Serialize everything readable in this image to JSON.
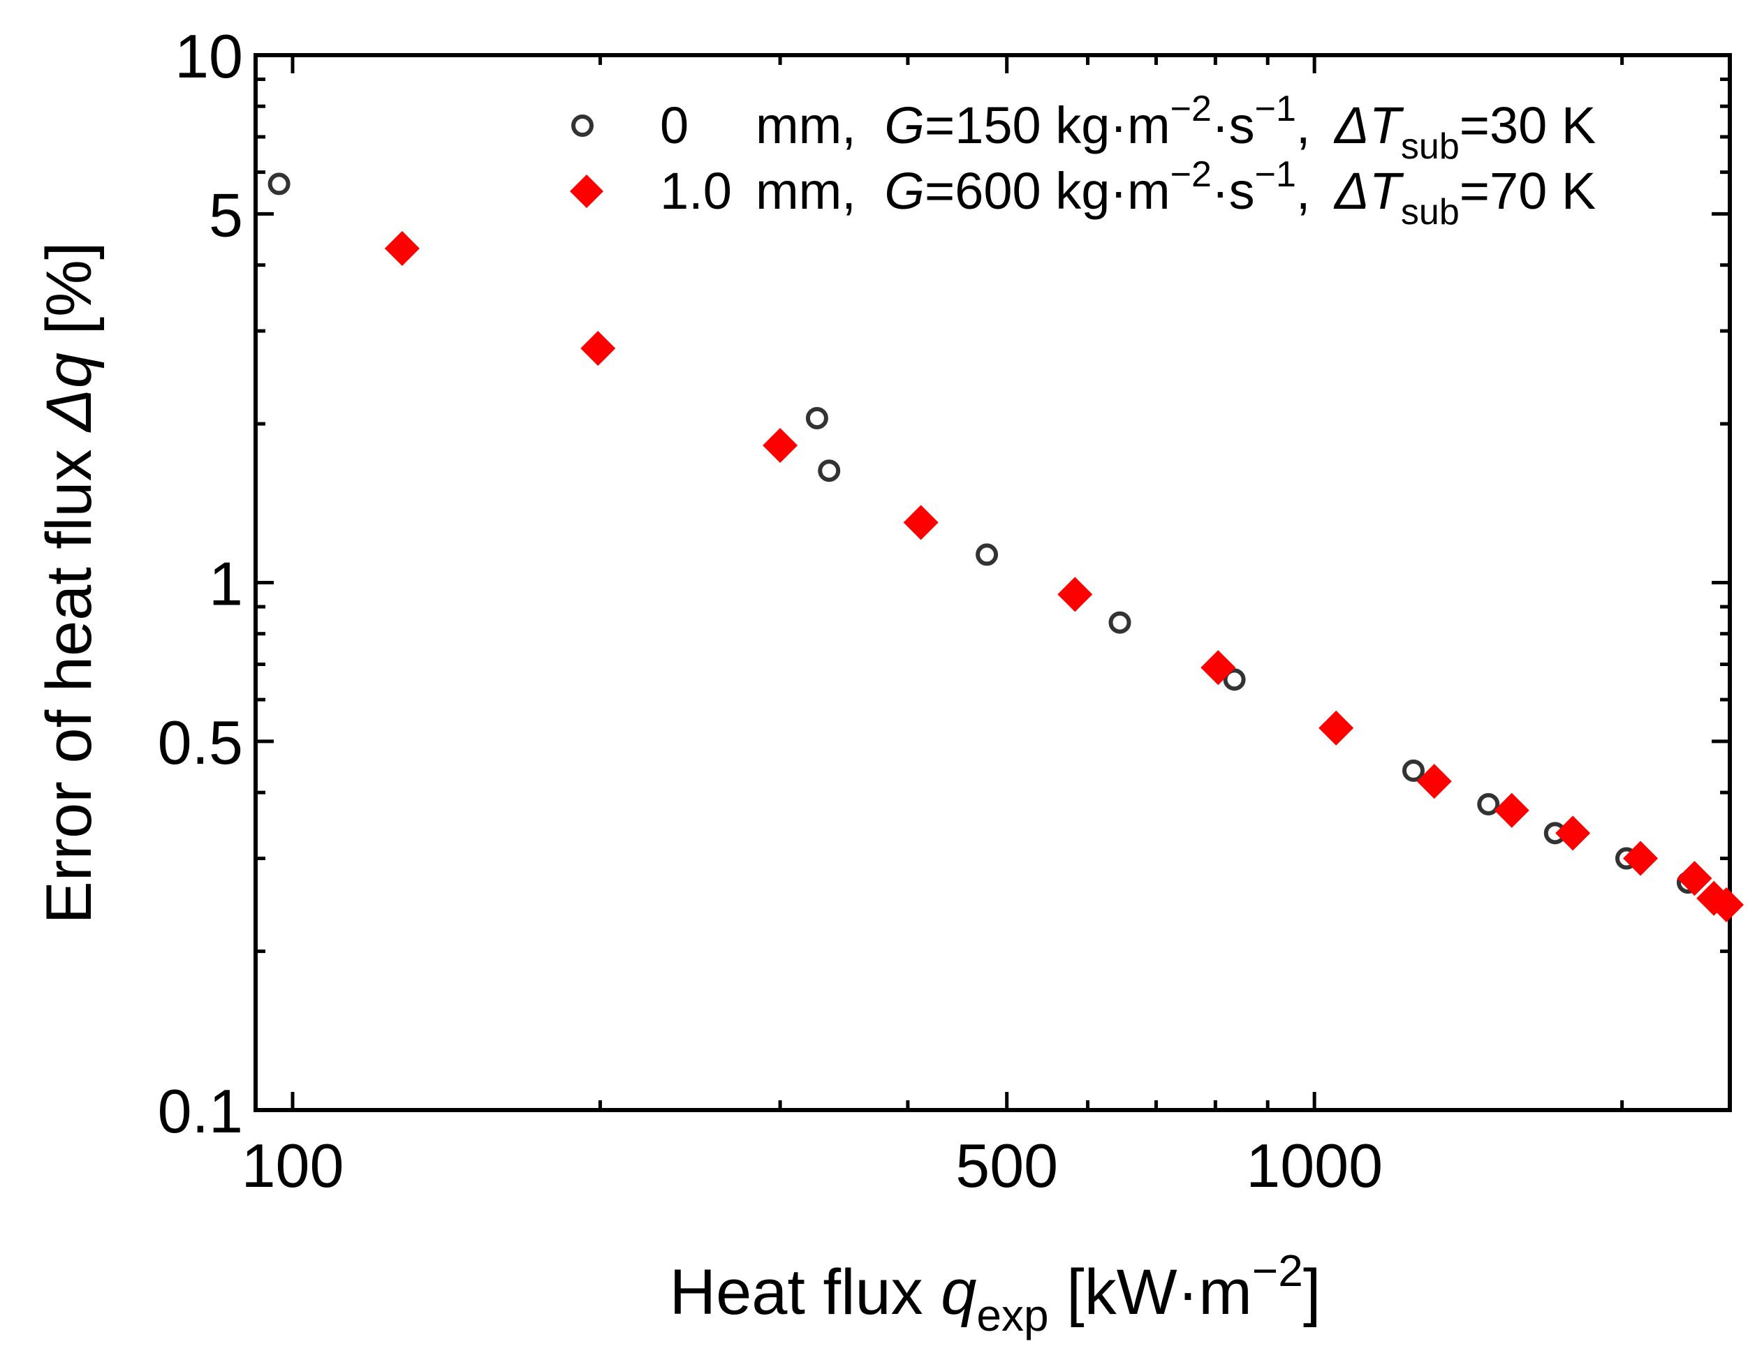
{
  "chart_data": {
    "type": "scatter",
    "xscale": "log",
    "yscale": "log",
    "xlim": [
      92,
      2550
    ],
    "ylim": [
      0.1,
      10
    ],
    "xticks": [
      {
        "value": 100,
        "label": "100"
      },
      {
        "value": 500,
        "label": "500"
      },
      {
        "value": 1000,
        "label": "1000"
      }
    ],
    "yticks": [
      {
        "value": 0.1,
        "label": "0.1"
      },
      {
        "value": 0.5,
        "label": "0.5"
      },
      {
        "value": 1,
        "label": "1"
      },
      {
        "value": 5,
        "label": "5"
      },
      {
        "value": 10,
        "label": "10"
      }
    ],
    "xlabel": {
      "main": "Heat flux ",
      "symbol": "q",
      "subscript": "exp",
      "unit_open": " [kW·m",
      "unit_exp": "−2",
      "unit_close": "]"
    },
    "ylabel": {
      "main": "Error of heat flux ",
      "symbol": "Δq",
      "unit": " [%]"
    },
    "legend_position": "top-right",
    "series": [
      {
        "name": "0 mm, G=150 kg·m−2·s−1, ΔTsub=30 K",
        "marker": "open-circle",
        "color": "#333333",
        "legend": {
          "dim": "0",
          "unit": "mm,",
          "g_sym": "G",
          "g_val": "=150 kg·m",
          "g_exp1": "−2",
          "g_mid": "·s",
          "g_exp2": "−1",
          "comma": ",",
          "dt_sym": "ΔT",
          "dt_sub": "sub",
          "dt_val": "=30 K"
        },
        "x": [
          97,
          326,
          335,
          478,
          645,
          835,
          1250,
          1480,
          1720,
          2020,
          2320
        ],
        "y": [
          5.7,
          2.05,
          1.63,
          1.13,
          0.84,
          0.655,
          0.44,
          0.38,
          0.335,
          0.3,
          0.27
        ]
      },
      {
        "name": "1.0 mm, G=600 kg·m−2·s−1, ΔTsub=70 K",
        "marker": "filled-diamond",
        "color": "#ff0000",
        "legend": {
          "dim": "1.0",
          "unit": "mm,",
          "g_sym": "G",
          "g_val": "=600 kg·m",
          "g_exp1": "−2",
          "g_mid": "·s",
          "g_exp2": "−1",
          "comma": ",",
          "dt_sym": "ΔT",
          "dt_sub": "sub",
          "dt_val": "=70 K"
        },
        "x": [
          128,
          199,
          300,
          412,
          583,
          805,
          1050,
          1310,
          1560,
          1790,
          2085,
          2355,
          2460,
          2530
        ],
        "y": [
          4.3,
          2.78,
          1.82,
          1.3,
          0.95,
          0.69,
          0.53,
          0.42,
          0.37,
          0.335,
          0.3,
          0.275,
          0.252,
          0.245
        ]
      }
    ]
  }
}
